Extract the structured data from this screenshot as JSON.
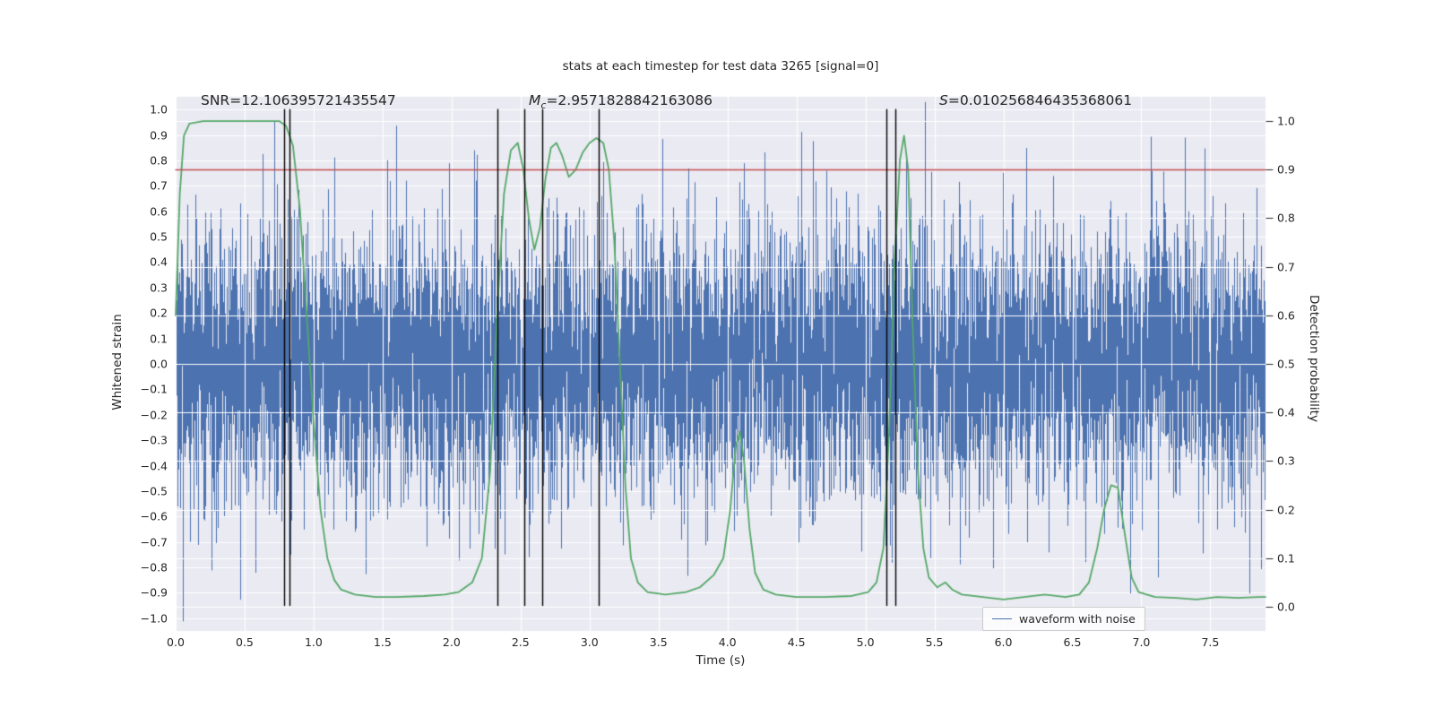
{
  "chart_data": {
    "type": "line",
    "title": "stats at each timestep for test data 3265 [signal=0]",
    "xlabel": "Time (s)",
    "ylabel_left": "Whitened strain",
    "ylabel_right": "Detection probability",
    "xlim": [
      0,
      7.9
    ],
    "ylim_left": [
      -1.05,
      1.05
    ],
    "ylim_right": [
      -0.05,
      1.05
    ],
    "grid": true,
    "legend_position": "lower right",
    "xticks": {
      "values": [
        0.0,
        0.5,
        1.0,
        1.5,
        2.0,
        2.5,
        3.0,
        3.5,
        4.0,
        4.5,
        5.0,
        5.5,
        6.0,
        6.5,
        7.0,
        7.5
      ],
      "labels": [
        "0.0",
        "0.5",
        "1.0",
        "1.5",
        "2.0",
        "2.5",
        "3.0",
        "3.5",
        "4.0",
        "4.5",
        "5.0",
        "5.5",
        "6.0",
        "6.5",
        "7.0",
        "7.5"
      ]
    },
    "yticks_left": {
      "values": [
        1.0,
        0.9,
        0.8,
        0.7,
        0.6,
        0.5,
        0.4,
        0.3,
        0.2,
        0.1,
        0.0,
        -0.1,
        -0.2,
        -0.3,
        -0.4,
        -0.5,
        -0.6,
        -0.7,
        -0.8,
        -0.9,
        -1.0
      ],
      "labels": [
        "1.0",
        "0.9",
        "0.8",
        "0.7",
        "0.6",
        "0.5",
        "0.4",
        "0.3",
        "0.2",
        "0.1",
        "0.0",
        "−0.1",
        "−0.2",
        "−0.3",
        "−0.4",
        "−0.5",
        "−0.6",
        "−0.7",
        "−0.8",
        "−0.9",
        "−1.0"
      ]
    },
    "yticks_right": {
      "values": [
        1.0,
        0.9,
        0.8,
        0.7,
        0.6,
        0.5,
        0.4,
        0.3,
        0.2,
        0.1,
        0.0
      ],
      "labels": [
        "1.0",
        "0.9",
        "0.8",
        "0.7",
        "0.6",
        "0.5",
        "0.4",
        "0.3",
        "0.2",
        "0.1",
        "0.0"
      ]
    },
    "annotations": {
      "snr": "SNR=12.106395721435547",
      "mc_var": "M",
      "mc_sub": "c",
      "mc_rest": "=2.9571828842163086",
      "s_var": "S",
      "s_rest": "=0.010256846435368061"
    },
    "legend": {
      "label": "waveform with noise",
      "line_color": "#4c72b0"
    },
    "threshold": {
      "axis": "right",
      "value": 0.9,
      "color": "#c44e52"
    },
    "vlines": {
      "x": [
        0.785,
        0.825,
        2.33,
        2.525,
        2.655,
        3.065,
        5.155,
        5.215
      ],
      "ymin": -0.95,
      "ymax": 1.0,
      "color": "#000000"
    },
    "noise": {
      "seed": 3265,
      "sigma": 0.265,
      "samples_per_column": 6,
      "clip": 1.03,
      "color": "#4c72b0"
    },
    "detection_curve": {
      "color": "#55a868",
      "points": [
        [
          0.0,
          0.6
        ],
        [
          0.03,
          0.85
        ],
        [
          0.06,
          0.97
        ],
        [
          0.1,
          0.995
        ],
        [
          0.2,
          1.0
        ],
        [
          0.4,
          1.0
        ],
        [
          0.6,
          1.0
        ],
        [
          0.75,
          1.0
        ],
        [
          0.8,
          0.99
        ],
        [
          0.85,
          0.95
        ],
        [
          0.9,
          0.82
        ],
        [
          0.95,
          0.6
        ],
        [
          1.0,
          0.38
        ],
        [
          1.05,
          0.2
        ],
        [
          1.1,
          0.1
        ],
        [
          1.15,
          0.055
        ],
        [
          1.2,
          0.035
        ],
        [
          1.3,
          0.025
        ],
        [
          1.45,
          0.02
        ],
        [
          1.6,
          0.02
        ],
        [
          1.8,
          0.022
        ],
        [
          1.95,
          0.025
        ],
        [
          2.05,
          0.03
        ],
        [
          2.15,
          0.05
        ],
        [
          2.22,
          0.1
        ],
        [
          2.28,
          0.28
        ],
        [
          2.33,
          0.6
        ],
        [
          2.38,
          0.85
        ],
        [
          2.43,
          0.94
        ],
        [
          2.48,
          0.955
        ],
        [
          2.52,
          0.9
        ],
        [
          2.56,
          0.8
        ],
        [
          2.6,
          0.735
        ],
        [
          2.64,
          0.78
        ],
        [
          2.68,
          0.88
        ],
        [
          2.72,
          0.945
        ],
        [
          2.76,
          0.955
        ],
        [
          2.8,
          0.93
        ],
        [
          2.85,
          0.885
        ],
        [
          2.9,
          0.9
        ],
        [
          2.95,
          0.935
        ],
        [
          3.0,
          0.955
        ],
        [
          3.05,
          0.965
        ],
        [
          3.1,
          0.955
        ],
        [
          3.14,
          0.9
        ],
        [
          3.18,
          0.75
        ],
        [
          3.22,
          0.5
        ],
        [
          3.26,
          0.25
        ],
        [
          3.3,
          0.1
        ],
        [
          3.35,
          0.05
        ],
        [
          3.42,
          0.03
        ],
        [
          3.55,
          0.025
        ],
        [
          3.7,
          0.03
        ],
        [
          3.8,
          0.04
        ],
        [
          3.9,
          0.065
        ],
        [
          3.97,
          0.1
        ],
        [
          4.02,
          0.2
        ],
        [
          4.06,
          0.33
        ],
        [
          4.09,
          0.36
        ],
        [
          4.12,
          0.3
        ],
        [
          4.16,
          0.16
        ],
        [
          4.2,
          0.07
        ],
        [
          4.26,
          0.035
        ],
        [
          4.35,
          0.025
        ],
        [
          4.5,
          0.02
        ],
        [
          4.7,
          0.02
        ],
        [
          4.9,
          0.022
        ],
        [
          5.02,
          0.03
        ],
        [
          5.08,
          0.05
        ],
        [
          5.13,
          0.12
        ],
        [
          5.17,
          0.35
        ],
        [
          5.21,
          0.7
        ],
        [
          5.25,
          0.92
        ],
        [
          5.28,
          0.97
        ],
        [
          5.31,
          0.9
        ],
        [
          5.34,
          0.6
        ],
        [
          5.38,
          0.28
        ],
        [
          5.42,
          0.12
        ],
        [
          5.46,
          0.06
        ],
        [
          5.52,
          0.04
        ],
        [
          5.58,
          0.05
        ],
        [
          5.63,
          0.035
        ],
        [
          5.7,
          0.025
        ],
        [
          5.85,
          0.02
        ],
        [
          6.0,
          0.015
        ],
        [
          6.15,
          0.02
        ],
        [
          6.3,
          0.025
        ],
        [
          6.45,
          0.02
        ],
        [
          6.55,
          0.025
        ],
        [
          6.62,
          0.05
        ],
        [
          6.68,
          0.12
        ],
        [
          6.73,
          0.2
        ],
        [
          6.78,
          0.25
        ],
        [
          6.83,
          0.245
        ],
        [
          6.88,
          0.15
        ],
        [
          6.93,
          0.06
        ],
        [
          6.98,
          0.03
        ],
        [
          7.1,
          0.02
        ],
        [
          7.25,
          0.018
        ],
        [
          7.4,
          0.015
        ],
        [
          7.55,
          0.02
        ],
        [
          7.7,
          0.018
        ],
        [
          7.85,
          0.02
        ],
        [
          7.9,
          0.02
        ]
      ]
    },
    "style": {
      "plot_bg": "#eaeaf2",
      "grid_color": "#ffffff",
      "text_color": "#262626"
    }
  }
}
